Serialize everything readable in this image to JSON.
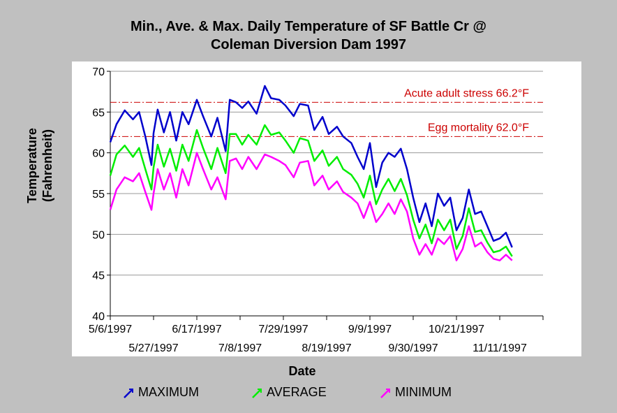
{
  "chart_data": {
    "type": "line",
    "title_line1": "Min., Ave. & Max. Daily Temperature of SF Battle Cr @",
    "title_line2": "Coleman Diversion Dam 1997",
    "xlabel": "Date",
    "ylabel_line1": "Temperature",
    "ylabel_line2": "(Fahrenheit)",
    "ylim": [
      40,
      70
    ],
    "yticks": [
      40,
      45,
      50,
      55,
      60,
      65,
      70
    ],
    "xlim": [
      "1997-05-06",
      "1997-12-02"
    ],
    "xticks": [
      {
        "date": "1997-05-06",
        "label": "5/6/1997",
        "row": 1
      },
      {
        "date": "1997-05-27",
        "label": "5/27/1997",
        "row": 2
      },
      {
        "date": "1997-06-17",
        "label": "6/17/1997",
        "row": 1
      },
      {
        "date": "1997-07-08",
        "label": "7/8/1997",
        "row": 2
      },
      {
        "date": "1997-07-29",
        "label": "7/29/1997",
        "row": 1
      },
      {
        "date": "1997-08-19",
        "label": "8/19/1997",
        "row": 2
      },
      {
        "date": "1997-09-09",
        "label": "9/9/1997",
        "row": 1
      },
      {
        "date": "1997-09-30",
        "label": "9/30/1997",
        "row": 2
      },
      {
        "date": "1997-10-21",
        "label": "10/21/1997",
        "row": 1
      },
      {
        "date": "1997-11-11",
        "label": "11/11/1997",
        "row": 2
      },
      {
        "date": "1997-12-02",
        "label": "",
        "row": 1
      }
    ],
    "grid": true,
    "reference_lines": [
      {
        "label": "Acute adult stress 66.2°F",
        "y": 66.2,
        "color": "#cc0000"
      },
      {
        "label": "Egg mortality 62.0°F",
        "y": 62.0,
        "color": "#cc0000"
      }
    ],
    "legend_position": "bottom",
    "series": [
      {
        "name": "MAXIMUM",
        "color": "#0000cc",
        "x": [
          "1997-05-06",
          "1997-05-09",
          "1997-05-13",
          "1997-05-17",
          "1997-05-20",
          "1997-05-23",
          "1997-05-26",
          "1997-05-27",
          "1997-05-29",
          "1997-06-01",
          "1997-06-04",
          "1997-06-07",
          "1997-06-10",
          "1997-06-13",
          "1997-06-17",
          "1997-06-20",
          "1997-06-24",
          "1997-06-27",
          "1997-07-01",
          "1997-07-03",
          "1997-07-06",
          "1997-07-09",
          "1997-07-12",
          "1997-07-16",
          "1997-07-20",
          "1997-07-23",
          "1997-07-27",
          "1997-07-30",
          "1997-08-03",
          "1997-08-06",
          "1997-08-10",
          "1997-08-13",
          "1997-08-17",
          "1997-08-20",
          "1997-08-24",
          "1997-08-27",
          "1997-08-31",
          "1997-09-03",
          "1997-09-06",
          "1997-09-09",
          "1997-09-12",
          "1997-09-15",
          "1997-09-18",
          "1997-09-21",
          "1997-09-24",
          "1997-09-27",
          "1997-09-30",
          "1997-10-03",
          "1997-10-06",
          "1997-10-09",
          "1997-10-12",
          "1997-10-15",
          "1997-10-18",
          "1997-10-21",
          "1997-10-24",
          "1997-10-27",
          "1997-10-30",
          "1997-11-02",
          "1997-11-05",
          "1997-11-08",
          "1997-11-11",
          "1997-11-14",
          "1997-11-17"
        ],
        "values": [
          61.3,
          63.5,
          65.2,
          64.1,
          65.0,
          62.0,
          58.5,
          62.4,
          65.3,
          62.5,
          65.0,
          61.5,
          65.0,
          63.5,
          66.5,
          64.5,
          62.0,
          64.3,
          60.2,
          66.5,
          66.2,
          65.5,
          66.3,
          64.8,
          68.2,
          66.7,
          66.5,
          65.8,
          64.5,
          66.0,
          65.8,
          62.8,
          64.4,
          62.3,
          63.2,
          62.0,
          61.2,
          59.5,
          58.0,
          61.2,
          55.8,
          58.8,
          60.0,
          59.5,
          60.5,
          58.0,
          54.5,
          51.5,
          53.8,
          51.0,
          55.0,
          53.5,
          54.5,
          50.5,
          52.0,
          55.5,
          52.5,
          52.8,
          51.0,
          49.2,
          49.5,
          50.2,
          48.4
        ]
      },
      {
        "name": "AVERAGE",
        "color": "#00ee00",
        "x": [
          "1997-05-06",
          "1997-05-09",
          "1997-05-13",
          "1997-05-17",
          "1997-05-20",
          "1997-05-23",
          "1997-05-26",
          "1997-05-27",
          "1997-05-29",
          "1997-06-01",
          "1997-06-04",
          "1997-06-07",
          "1997-06-10",
          "1997-06-13",
          "1997-06-17",
          "1997-06-20",
          "1997-06-24",
          "1997-06-27",
          "1997-07-01",
          "1997-07-03",
          "1997-07-06",
          "1997-07-09",
          "1997-07-12",
          "1997-07-16",
          "1997-07-20",
          "1997-07-23",
          "1997-07-27",
          "1997-07-30",
          "1997-08-03",
          "1997-08-06",
          "1997-08-10",
          "1997-08-13",
          "1997-08-17",
          "1997-08-20",
          "1997-08-24",
          "1997-08-27",
          "1997-08-31",
          "1997-09-03",
          "1997-09-06",
          "1997-09-09",
          "1997-09-12",
          "1997-09-15",
          "1997-09-18",
          "1997-09-21",
          "1997-09-24",
          "1997-09-27",
          "1997-09-30",
          "1997-10-03",
          "1997-10-06",
          "1997-10-09",
          "1997-10-12",
          "1997-10-15",
          "1997-10-18",
          "1997-10-21",
          "1997-10-24",
          "1997-10-27",
          "1997-10-30",
          "1997-11-02",
          "1997-11-05",
          "1997-11-08",
          "1997-11-11",
          "1997-11-14",
          "1997-11-17"
        ],
        "values": [
          57.2,
          59.8,
          60.9,
          59.5,
          60.6,
          58.0,
          55.5,
          58.2,
          61.0,
          58.3,
          60.5,
          57.8,
          61.0,
          59.0,
          62.8,
          60.6,
          58.0,
          60.6,
          57.5,
          62.3,
          62.3,
          61.0,
          62.2,
          61.0,
          63.4,
          62.2,
          62.5,
          61.5,
          60.0,
          61.8,
          61.5,
          59.0,
          60.3,
          58.4,
          59.5,
          58.0,
          57.3,
          56.2,
          54.5,
          57.2,
          53.7,
          55.5,
          56.8,
          55.3,
          56.8,
          54.8,
          51.8,
          49.5,
          51.2,
          48.9,
          51.8,
          50.5,
          51.8,
          48.2,
          49.8,
          53.2,
          50.3,
          50.5,
          49.0,
          47.8,
          48.0,
          48.5,
          47.3
        ]
      },
      {
        "name": "MINIMUM",
        "color": "#ff00ff",
        "x": [
          "1997-05-06",
          "1997-05-09",
          "1997-05-13",
          "1997-05-17",
          "1997-05-20",
          "1997-05-23",
          "1997-05-26",
          "1997-05-27",
          "1997-05-29",
          "1997-06-01",
          "1997-06-04",
          "1997-06-07",
          "1997-06-10",
          "1997-06-13",
          "1997-06-17",
          "1997-06-20",
          "1997-06-24",
          "1997-06-27",
          "1997-07-01",
          "1997-07-03",
          "1997-07-06",
          "1997-07-09",
          "1997-07-12",
          "1997-07-16",
          "1997-07-20",
          "1997-07-23",
          "1997-07-27",
          "1997-07-30",
          "1997-08-03",
          "1997-08-06",
          "1997-08-10",
          "1997-08-13",
          "1997-08-17",
          "1997-08-20",
          "1997-08-24",
          "1997-08-27",
          "1997-08-31",
          "1997-09-03",
          "1997-09-06",
          "1997-09-09",
          "1997-09-12",
          "1997-09-15",
          "1997-09-18",
          "1997-09-21",
          "1997-09-24",
          "1997-09-27",
          "1997-09-30",
          "1997-10-03",
          "1997-10-06",
          "1997-10-09",
          "1997-10-12",
          "1997-10-15",
          "1997-10-18",
          "1997-10-21",
          "1997-10-24",
          "1997-10-27",
          "1997-10-30",
          "1997-11-02",
          "1997-11-05",
          "1997-11-08",
          "1997-11-11",
          "1997-11-14",
          "1997-11-17"
        ],
        "values": [
          53.0,
          55.5,
          57.0,
          56.5,
          57.5,
          55.2,
          53.0,
          55.0,
          58.0,
          55.5,
          57.5,
          54.5,
          58.0,
          56.0,
          60.0,
          58.0,
          55.5,
          57.0,
          54.3,
          59.0,
          59.3,
          58.0,
          59.5,
          58.0,
          59.8,
          59.5,
          59.0,
          58.5,
          57.0,
          58.8,
          59.0,
          56.0,
          57.2,
          55.5,
          56.5,
          55.2,
          54.5,
          53.8,
          52.0,
          54.0,
          51.5,
          52.5,
          53.8,
          52.5,
          54.3,
          52.8,
          49.5,
          47.5,
          48.8,
          47.5,
          49.5,
          48.8,
          49.8,
          46.8,
          48.2,
          51.0,
          48.5,
          49.0,
          47.8,
          47.0,
          46.8,
          47.5,
          46.8
        ]
      }
    ]
  }
}
